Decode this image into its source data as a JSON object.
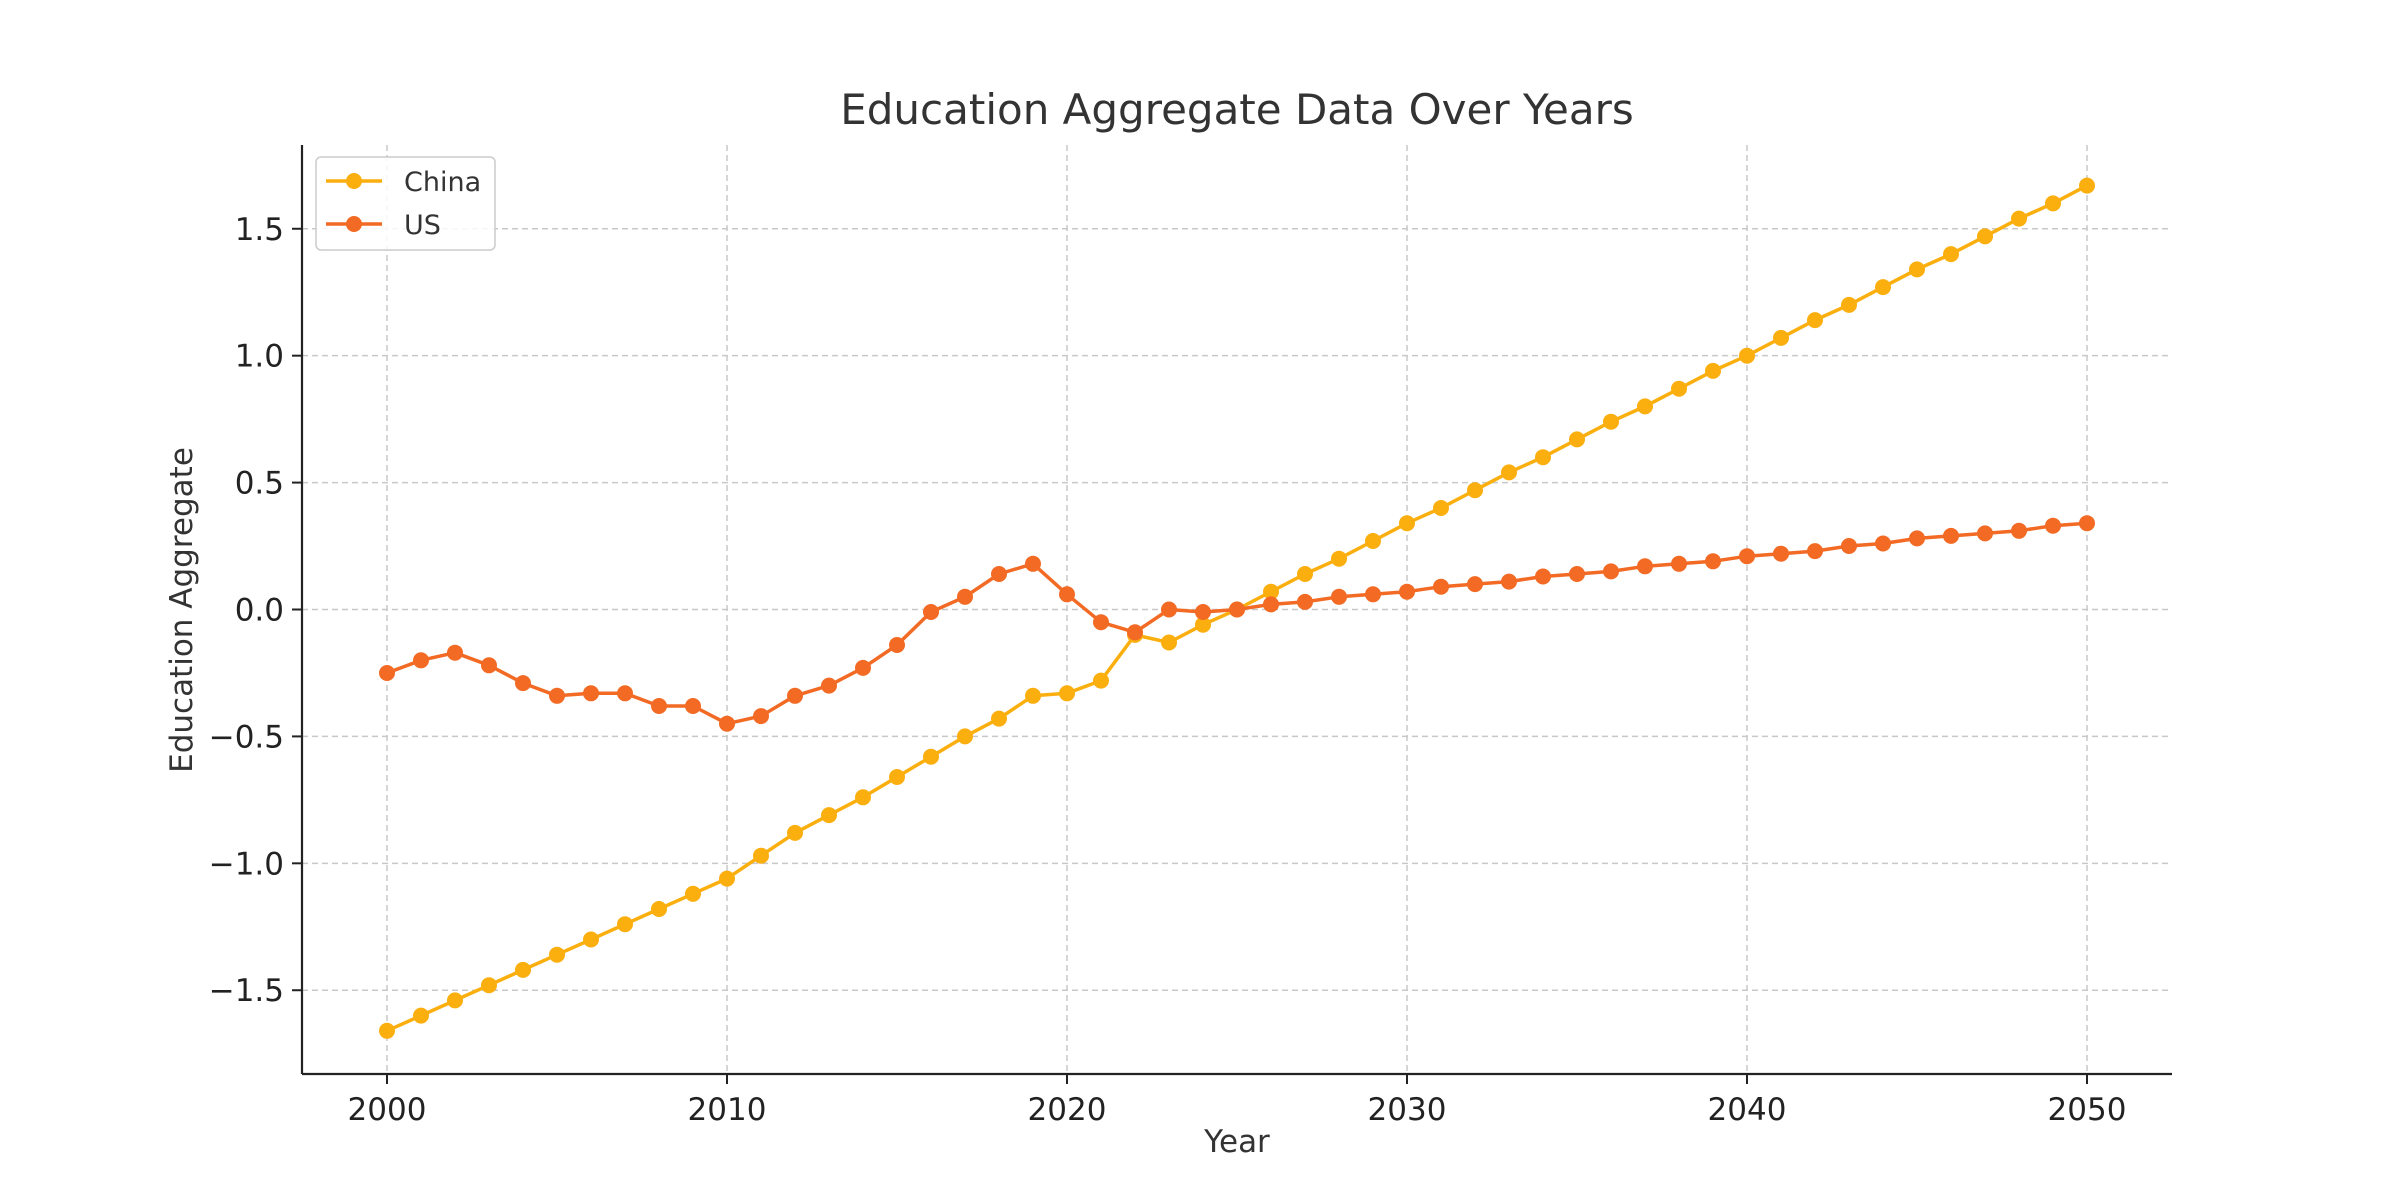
{
  "colors": {
    "china": "#FBAF0F",
    "us": "#F26A24",
    "grid": "#c8c8c8",
    "axis": "#222222"
  },
  "chart_data": {
    "type": "line",
    "title": "Education Aggregate Data Over Years",
    "xlabel": "Year",
    "ylabel": "Education Aggregate",
    "xlim": [
      1997.5,
      2052.5
    ],
    "ylim": [
      -1.83,
      1.83
    ],
    "xticks": [
      2000,
      2010,
      2020,
      2030,
      2040,
      2050
    ],
    "xtick_labels": [
      "2000",
      "2010",
      "2020",
      "2030",
      "2040",
      "2050"
    ],
    "yticks": [
      -1.5,
      -1.0,
      -0.5,
      0.0,
      0.5,
      1.0,
      1.5
    ],
    "ytick_labels": [
      "−1.5",
      "−1.0",
      "−0.5",
      "0.0",
      "0.5",
      "1.0",
      "1.5"
    ],
    "grid": true,
    "legend_position": "top-left",
    "x": [
      2000,
      2001,
      2002,
      2003,
      2004,
      2005,
      2006,
      2007,
      2008,
      2009,
      2010,
      2011,
      2012,
      2013,
      2014,
      2015,
      2016,
      2017,
      2018,
      2019,
      2020,
      2021,
      2022,
      2023,
      2024,
      2025,
      2026,
      2027,
      2028,
      2029,
      2030,
      2031,
      2032,
      2033,
      2034,
      2035,
      2036,
      2037,
      2038,
      2039,
      2040,
      2041,
      2042,
      2043,
      2044,
      2045,
      2046,
      2047,
      2048,
      2049,
      2050
    ],
    "series": [
      {
        "name": "China",
        "color": "#FBAF0F",
        "values": [
          -1.66,
          -1.6,
          -1.54,
          -1.48,
          -1.42,
          -1.36,
          -1.3,
          -1.24,
          -1.18,
          -1.12,
          -1.06,
          -0.97,
          -0.88,
          -0.81,
          -0.74,
          -0.66,
          -0.58,
          -0.5,
          -0.43,
          -0.34,
          -0.33,
          -0.28,
          -0.1,
          -0.13,
          -0.06,
          0.0,
          0.07,
          0.14,
          0.2,
          0.27,
          0.34,
          0.4,
          0.47,
          0.54,
          0.6,
          0.67,
          0.74,
          0.8,
          0.87,
          0.94,
          1.0,
          1.07,
          1.14,
          1.2,
          1.27,
          1.34,
          1.4,
          1.47,
          1.54,
          1.6,
          1.67
        ]
      },
      {
        "name": "US",
        "color": "#F26A24",
        "values": [
          -0.25,
          -0.2,
          -0.17,
          -0.22,
          -0.29,
          -0.34,
          -0.33,
          -0.33,
          -0.38,
          -0.38,
          -0.45,
          -0.42,
          -0.34,
          -0.3,
          -0.23,
          -0.14,
          -0.01,
          0.05,
          0.14,
          0.18,
          0.06,
          -0.05,
          -0.09,
          0.0,
          -0.01,
          0.0,
          0.02,
          0.03,
          0.05,
          0.06,
          0.07,
          0.09,
          0.1,
          0.11,
          0.13,
          0.14,
          0.15,
          0.17,
          0.18,
          0.19,
          0.21,
          0.22,
          0.23,
          0.25,
          0.26,
          0.28,
          0.29,
          0.3,
          0.31,
          0.33,
          0.34
        ]
      }
    ]
  }
}
